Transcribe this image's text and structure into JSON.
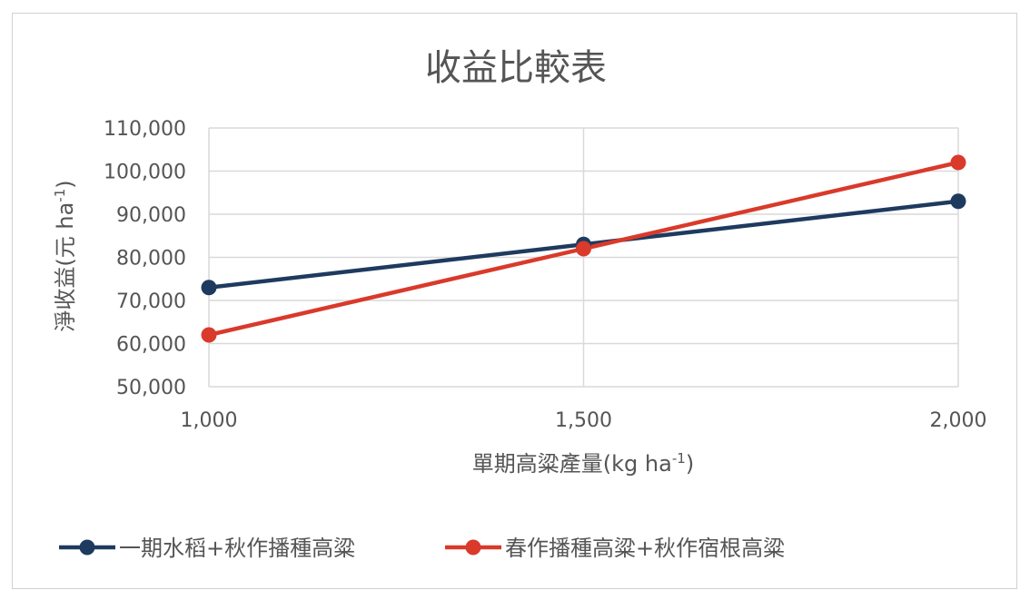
{
  "chart_data": {
    "type": "line",
    "title": "收益比較表",
    "xlabel_main": "單期高粱產量(kg ha",
    "xlabel_sup": "-1",
    "xlabel_close": ")",
    "ylabel_main": "淨收益(元 ha",
    "ylabel_sup": "-1",
    "ylabel_close": ")",
    "x": [
      1000,
      1500,
      2000
    ],
    "x_tick_labels": [
      "1,000",
      "1,500",
      "2,000"
    ],
    "y_tick_labels": [
      "50,000",
      "60,000",
      "70,000",
      "80,000",
      "90,000",
      "100,000",
      "110,000"
    ],
    "y_ticks": [
      50000,
      60000,
      70000,
      80000,
      90000,
      100000,
      110000
    ],
    "ylim": [
      50000,
      110000
    ],
    "xlim": [
      1000,
      2000
    ],
    "grid": true,
    "legend_position": "bottom",
    "series": [
      {
        "name": "一期水稻+秋作播種高粱",
        "values": [
          73000,
          83000,
          93000
        ],
        "color": "#1f3a5f"
      },
      {
        "name": "春作播種高粱+秋作宿根高粱",
        "values": [
          62000,
          82000,
          102000
        ],
        "color": "#d93a2b"
      }
    ]
  }
}
